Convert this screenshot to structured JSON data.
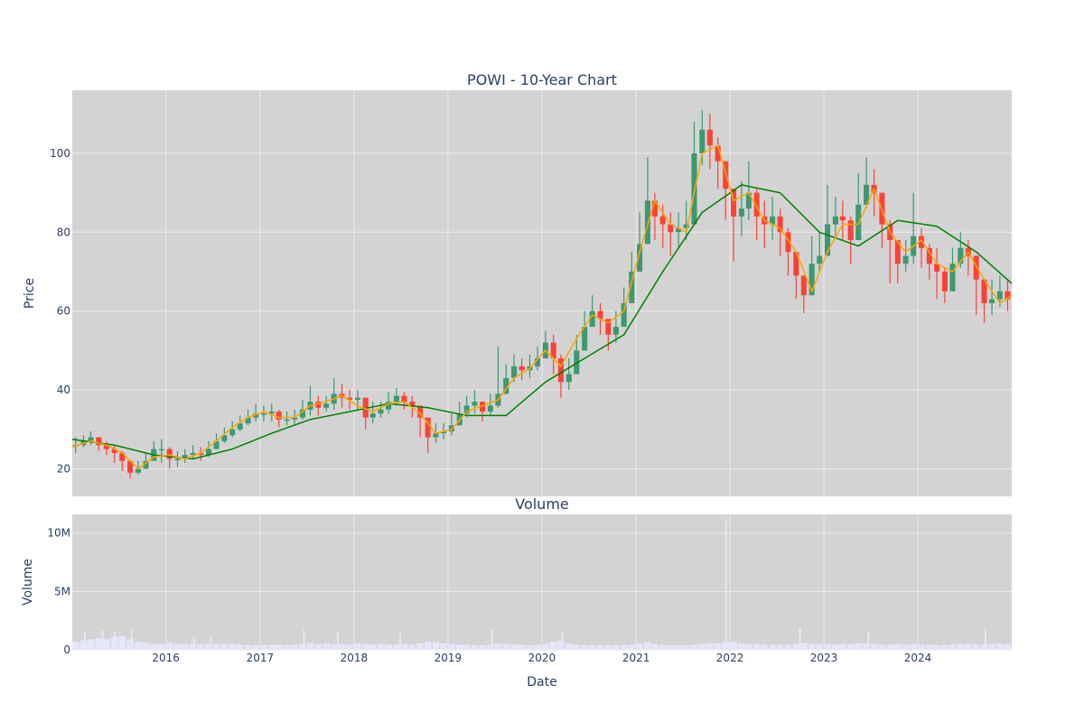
{
  "chart_data": [
    {
      "type": "candlestick",
      "title": "POWI - 10-Year Chart",
      "xlabel": "",
      "ylabel": "Price",
      "xlim": [
        "2015-01-02",
        "2024-12-31"
      ],
      "ylim": [
        13,
        116
      ],
      "yticks": [
        20,
        40,
        60,
        80,
        100
      ],
      "grid": true,
      "colors": {
        "up": "#3d9970",
        "down": "#ff4136",
        "ma_short": "#ffa500",
        "ma_long": "#008000",
        "background": "#d3d3d3",
        "grid": "#ebebeb"
      },
      "monthly_ohlc": {
        "dates": [
          "2015-01",
          "2015-02",
          "2015-03",
          "2015-04",
          "2015-05",
          "2015-06",
          "2015-07",
          "2015-08",
          "2015-09",
          "2015-10",
          "2015-11",
          "2015-12",
          "2016-01",
          "2016-02",
          "2016-03",
          "2016-04",
          "2016-05",
          "2016-06",
          "2016-07",
          "2016-08",
          "2016-09",
          "2016-10",
          "2016-11",
          "2016-12",
          "2017-01",
          "2017-02",
          "2017-03",
          "2017-04",
          "2017-05",
          "2017-06",
          "2017-07",
          "2017-08",
          "2017-09",
          "2017-10",
          "2017-11",
          "2017-12",
          "2018-01",
          "2018-02",
          "2018-03",
          "2018-04",
          "2018-05",
          "2018-06",
          "2018-07",
          "2018-08",
          "2018-09",
          "2018-10",
          "2018-11",
          "2018-12",
          "2019-01",
          "2019-02",
          "2019-03",
          "2019-04",
          "2019-05",
          "2019-06",
          "2019-07",
          "2019-08",
          "2019-09",
          "2019-10",
          "2019-11",
          "2019-12",
          "2020-01",
          "2020-02",
          "2020-03",
          "2020-04",
          "2020-05",
          "2020-06",
          "2020-07",
          "2020-08",
          "2020-09",
          "2020-10",
          "2020-11",
          "2020-12",
          "2021-01",
          "2021-02",
          "2021-03",
          "2021-04",
          "2021-05",
          "2021-06",
          "2021-07",
          "2021-08",
          "2021-09",
          "2021-10",
          "2021-11",
          "2021-12",
          "2022-01",
          "2022-02",
          "2022-03",
          "2022-04",
          "2022-05",
          "2022-06",
          "2022-07",
          "2022-08",
          "2022-09",
          "2022-10",
          "2022-11",
          "2022-12",
          "2023-01",
          "2023-02",
          "2023-03",
          "2023-04",
          "2023-05",
          "2023-06",
          "2023-07",
          "2023-08",
          "2023-09",
          "2023-10",
          "2023-11",
          "2023-12",
          "2024-01",
          "2024-02",
          "2024-03",
          "2024-04",
          "2024-05",
          "2024-06",
          "2024-07",
          "2024-08",
          "2024-09",
          "2024-10",
          "2024-11",
          "2024-12"
        ],
        "close": [
          26.0,
          27.0,
          28.0,
          26.0,
          25.0,
          24.0,
          22.0,
          19.0,
          20.0,
          22.0,
          25.0,
          25.0,
          22.5,
          22.5,
          23.5,
          24.0,
          23.5,
          25.0,
          27.0,
          28.5,
          30.0,
          31.5,
          33.0,
          34.0,
          34.0,
          34.5,
          32.5,
          32.5,
          33.0,
          35.0,
          37.0,
          35.5,
          36.5,
          39.0,
          38.0,
          37.5,
          38.0,
          33.0,
          34.0,
          35.0,
          37.0,
          38.5,
          37.0,
          36.0,
          33.0,
          28.0,
          29.0,
          29.5,
          31.0,
          34.0,
          36.0,
          37.0,
          34.5,
          36.0,
          39.0,
          43.0,
          46.0,
          45.0,
          46.0,
          48.0,
          52.0,
          48.0,
          42.0,
          44.0,
          50.0,
          56.0,
          60.0,
          58.0,
          54.0,
          56.0,
          62.0,
          70.0,
          77.0,
          88.0,
          84.0,
          82.0,
          80.0,
          81.0,
          82.0,
          100.0,
          106.0,
          102.0,
          98.0,
          91.0,
          84.0,
          86.0,
          90.0,
          84.0,
          82.0,
          84.0,
          80.0,
          75.0,
          69.0,
          64.0,
          72.0,
          74.0,
          82.0,
          84.0,
          83.0,
          78.0,
          87.0,
          92.0,
          90.0,
          82.0,
          78.0,
          72.0,
          74.0,
          79.0,
          76.0,
          72.0,
          70.0,
          65.0,
          72.0,
          76.0,
          74.0,
          68.0,
          62.0,
          63.0,
          65.0,
          63.0
        ],
        "high": [
          28.0,
          28.5,
          29.5,
          28.0,
          27.0,
          26.0,
          24.5,
          21.0,
          22.0,
          24.0,
          27.0,
          27.5,
          25.5,
          24.5,
          25.0,
          26.0,
          25.5,
          27.0,
          29.0,
          30.5,
          32.0,
          33.5,
          35.0,
          36.5,
          36.0,
          36.5,
          35.0,
          34.5,
          35.0,
          37.5,
          41.0,
          38.5,
          38.5,
          43.0,
          41.5,
          40.0,
          40.0,
          37.5,
          37.0,
          37.0,
          39.5,
          40.5,
          39.5,
          38.5,
          36.0,
          31.0,
          31.5,
          31.5,
          34.0,
          37.0,
          38.5,
          40.0,
          37.0,
          39.0,
          51.0,
          46.5,
          49.0,
          48.0,
          49.0,
          51.0,
          55.0,
          54.0,
          49.0,
          48.0,
          54.0,
          60.0,
          64.0,
          62.0,
          58.0,
          60.0,
          66.0,
          75.0,
          85.0,
          99.0,
          90.0,
          87.0,
          85.0,
          85.0,
          88.0,
          108.0,
          111.0,
          110.0,
          104.0,
          97.0,
          91.0,
          93.0,
          98.0,
          91.0,
          88.0,
          89.0,
          86.0,
          81.0,
          75.0,
          68.0,
          79.0,
          80.0,
          92.0,
          89.0,
          88.0,
          84.0,
          95.0,
          99.0,
          96.0,
          88.0,
          83.0,
          78.0,
          78.0,
          90.0,
          81.0,
          77.0,
          76.0,
          71.0,
          76.0,
          80.0,
          78.0,
          73.0,
          66.0,
          68.0,
          69.0,
          68.0
        ],
        "low": [
          24.0,
          25.5,
          26.0,
          24.5,
          23.5,
          21.5,
          19.5,
          17.5,
          18.5,
          20.0,
          22.5,
          21.5,
          20.0,
          20.5,
          21.5,
          22.5,
          22.0,
          23.0,
          25.0,
          26.5,
          28.0,
          29.5,
          31.0,
          32.0,
          32.0,
          32.0,
          30.5,
          31.0,
          31.0,
          32.5,
          33.5,
          33.5,
          34.5,
          35.0,
          35.5,
          35.0,
          35.0,
          30.0,
          31.5,
          33.0,
          34.0,
          36.0,
          35.0,
          33.0,
          28.0,
          24.0,
          26.5,
          27.5,
          28.5,
          31.0,
          33.0,
          34.0,
          32.0,
          33.5,
          35.5,
          39.5,
          42.0,
          42.5,
          43.0,
          45.0,
          48.0,
          44.0,
          38.0,
          40.0,
          45.0,
          52.0,
          56.0,
          54.0,
          50.0,
          52.0,
          57.0,
          64.0,
          70.0,
          80.0,
          78.0,
          76.0,
          74.0,
          76.0,
          78.0,
          88.0,
          97.0,
          96.0,
          91.0,
          83.0,
          72.5,
          79.0,
          83.0,
          78.0,
          76.0,
          78.0,
          74.0,
          69.0,
          63.0,
          59.5,
          66.0,
          70.0,
          74.0,
          79.0,
          78.0,
          72.0,
          81.0,
          86.0,
          84.0,
          76.0,
          67.0,
          67.0,
          70.0,
          72.0,
          71.0,
          68.0,
          63.0,
          62.0,
          66.0,
          71.0,
          69.0,
          59.0,
          57.0,
          59.0,
          61.0,
          60.0
        ]
      },
      "ma_short": {
        "dates": [
          "2015-01-02",
          "2015-03",
          "2015-05",
          "2015-07",
          "2015-09",
          "2015-11",
          "2016-01",
          "2016-03",
          "2016-05",
          "2016-07",
          "2016-09",
          "2016-11",
          "2017-01",
          "2017-03",
          "2017-05",
          "2017-07",
          "2017-09",
          "2017-11",
          "2018-01",
          "2018-03",
          "2018-05",
          "2018-07",
          "2018-09",
          "2018-11",
          "2019-01",
          "2019-03",
          "2019-05",
          "2019-07",
          "2019-09",
          "2019-11",
          "2020-01",
          "2020-03",
          "2020-05",
          "2020-07",
          "2020-09",
          "2020-11",
          "2021-01",
          "2021-03",
          "2021-05",
          "2021-07",
          "2021-09",
          "2021-11",
          "2022-01",
          "2022-03",
          "2022-05",
          "2022-07",
          "2022-09",
          "2022-11",
          "2023-01",
          "2023-03",
          "2023-05",
          "2023-07",
          "2023-09",
          "2023-11",
          "2024-01",
          "2024-03",
          "2024-05",
          "2024-07",
          "2024-09",
          "2024-11",
          "2024-12-31"
        ],
        "values": [
          25.5,
          27.0,
          26.0,
          24.0,
          20.0,
          23.0,
          23.5,
          22.5,
          24.0,
          27.0,
          30.5,
          33.0,
          34.5,
          33.0,
          33.0,
          36.0,
          37.0,
          38.5,
          36.0,
          34.5,
          36.5,
          37.0,
          34.0,
          29.0,
          30.0,
          34.5,
          36.0,
          37.5,
          43.0,
          45.5,
          50.0,
          46.0,
          53.0,
          59.0,
          57.0,
          60.0,
          75.0,
          88.0,
          82.0,
          80.0,
          100.0,
          102.0,
          88.0,
          90.0,
          83.0,
          81.0,
          75.0,
          65.0,
          75.0,
          82.0,
          82.0,
          91.0,
          80.0,
          75.0,
          78.0,
          72.0,
          70.0,
          75.0,
          68.0,
          62.0,
          64.0
        ]
      },
      "ma_long": {
        "dates": [
          "2015-01-02",
          "2015-06",
          "2015-11",
          "2016-04",
          "2016-09",
          "2017-02",
          "2017-07",
          "2017-12",
          "2018-05",
          "2018-10",
          "2019-03",
          "2019-08",
          "2020-01",
          "2020-06",
          "2020-11",
          "2021-04",
          "2021-09",
          "2022-02",
          "2022-07",
          "2022-12",
          "2023-05",
          "2023-10",
          "2024-03",
          "2024-08",
          "2024-12-31"
        ],
        "values": [
          27.5,
          26.0,
          23.5,
          22.5,
          25.0,
          29.0,
          32.5,
          34.5,
          36.5,
          35.5,
          33.5,
          33.5,
          42.0,
          48.0,
          54.0,
          70.0,
          85.0,
          92.0,
          90.0,
          80.0,
          76.5,
          83.0,
          81.5,
          75.0,
          67.0
        ]
      }
    },
    {
      "type": "bar",
      "title": "Volume",
      "xlabel": "Date",
      "ylabel": "Volume",
      "xlim": [
        "2015-01-02",
        "2024-12-31"
      ],
      "ylim": [
        0,
        11600000
      ],
      "ytick_labels": [
        "0",
        "5M",
        "10M"
      ],
      "yticks": [
        0,
        5000000,
        10000000
      ],
      "xtick_labels": [
        "2016",
        "2017",
        "2018",
        "2019",
        "2020",
        "2021",
        "2022",
        "2023",
        "2024"
      ],
      "grid": true,
      "colors": {
        "bar": "#e6e6fa",
        "background": "#d3d3d3"
      },
      "monthly_avg_volume": [
        700000,
        800000,
        900000,
        1000000,
        900000,
        1100000,
        1200000,
        900000,
        700000,
        600000,
        500000,
        500000,
        600000,
        500000,
        500000,
        550000,
        500000,
        550000,
        500000,
        450000,
        500000,
        450000,
        400000,
        400000,
        400000,
        450000,
        450000,
        400000,
        450000,
        500000,
        600000,
        500000,
        550000,
        450000,
        500000,
        450000,
        550000,
        500000,
        450000,
        500000,
        450000,
        450000,
        500000,
        450000,
        550000,
        700000,
        650000,
        550000,
        500000,
        450000,
        450000,
        400000,
        400000,
        450000,
        550000,
        500000,
        450000,
        450000,
        400000,
        450000,
        500000,
        700000,
        800000,
        550000,
        450000,
        400000,
        400000,
        400000,
        400000,
        400000,
        400000,
        450000,
        550000,
        650000,
        500000,
        450000,
        400000,
        400000,
        400000,
        450000,
        500000,
        550000,
        550000,
        650000,
        700000,
        550000,
        500000,
        500000,
        450000,
        450000,
        450000,
        450000,
        500000,
        600000,
        500000,
        500000,
        500000,
        450000,
        500000,
        500000,
        550000,
        550000,
        500000,
        450000,
        450000,
        500000,
        450000,
        500000,
        450000,
        450000,
        400000,
        400000,
        450000,
        500000,
        500000,
        450000,
        450000,
        500000,
        550000,
        500000
      ],
      "spikes": [
        {
          "date": "2015-02-20",
          "value": 1500000
        },
        {
          "date": "2015-04-30",
          "value": 1700000
        },
        {
          "date": "2015-06-15",
          "value": 1600000
        },
        {
          "date": "2015-08-20",
          "value": 1800000
        },
        {
          "date": "2016-04-20",
          "value": 1000000
        },
        {
          "date": "2016-06-24",
          "value": 1200000
        },
        {
          "date": "2017-06-20",
          "value": 1700000
        },
        {
          "date": "2017-10-30",
          "value": 1500000
        },
        {
          "date": "2018-06-29",
          "value": 1400000
        },
        {
          "date": "2019-06-21",
          "value": 1700000
        },
        {
          "date": "2020-03-20",
          "value": 1500000
        },
        {
          "date": "2021-12-17",
          "value": 11200000
        },
        {
          "date": "2022-09-30",
          "value": 1900000
        },
        {
          "date": "2023-06-23",
          "value": 1600000
        },
        {
          "date": "2024-09-20",
          "value": 1800000
        }
      ]
    }
  ]
}
